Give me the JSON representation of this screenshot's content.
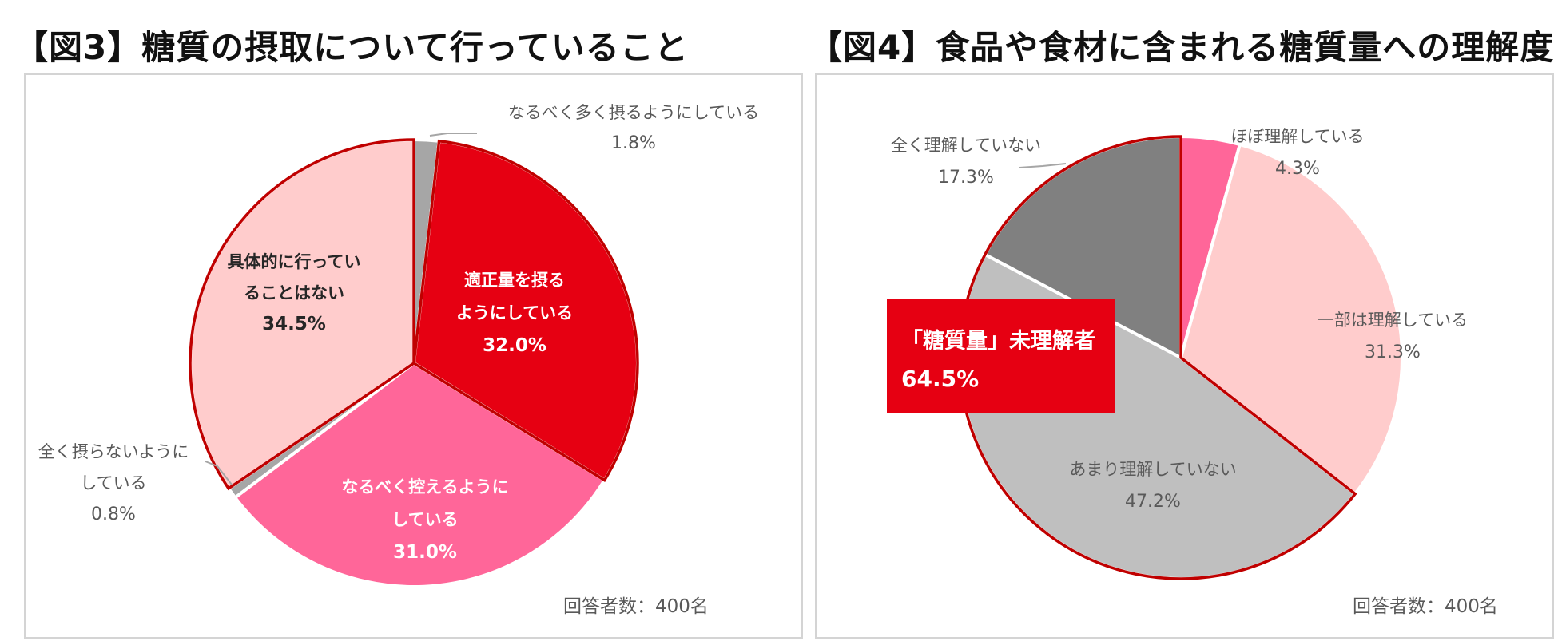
{
  "chart_data": [
    {
      "type": "pie",
      "title": "【図3】糖質の摂取について行っていること",
      "note": "回答者数：400名",
      "slices": [
        {
          "lines": [
            "なるべく多く摂るようにしている"
          ],
          "value_label": "1.8%",
          "value": 1.8,
          "color": "#a6a6a6"
        },
        {
          "lines": [
            "適正量を摂る",
            "ようにしている"
          ],
          "value_label": "32.0%",
          "value": 32.0,
          "color": "#e60012"
        },
        {
          "lines": [
            "なるべく控えるように",
            "している"
          ],
          "value_label": "31.0%",
          "value": 31.0,
          "color": "#ff6699"
        },
        {
          "lines": [
            "全く摂らないように",
            "している"
          ],
          "value_label": "0.8%",
          "value": 0.8,
          "color": "#a6a6a6"
        },
        {
          "lines": [
            "具体的に行ってい",
            "ることはない"
          ],
          "value_label": "34.5%",
          "value": 34.5,
          "color": "#ffcccc"
        }
      ]
    },
    {
      "type": "pie",
      "title": "【図4】食品や食材に含まれる糖質量への理解度",
      "note": "回答者数：400名",
      "callout": {
        "label": "「糖質量」未理解者",
        "value_label": "64.5%"
      },
      "slices": [
        {
          "lines": [
            "ほぼ理解している"
          ],
          "value_label": "4.3%",
          "value": 4.3,
          "color": "#ff6699"
        },
        {
          "lines": [
            "一部は理解している"
          ],
          "value_label": "31.3%",
          "value": 31.3,
          "color": "#ffcccc"
        },
        {
          "lines": [
            "あまり理解していない"
          ],
          "value_label": "47.2%",
          "value": 47.2,
          "color": "#bfbfbf"
        },
        {
          "lines": [
            "全く理解していない"
          ],
          "value_label": "17.3%",
          "value": 17.3,
          "color": "#808080"
        }
      ]
    }
  ]
}
